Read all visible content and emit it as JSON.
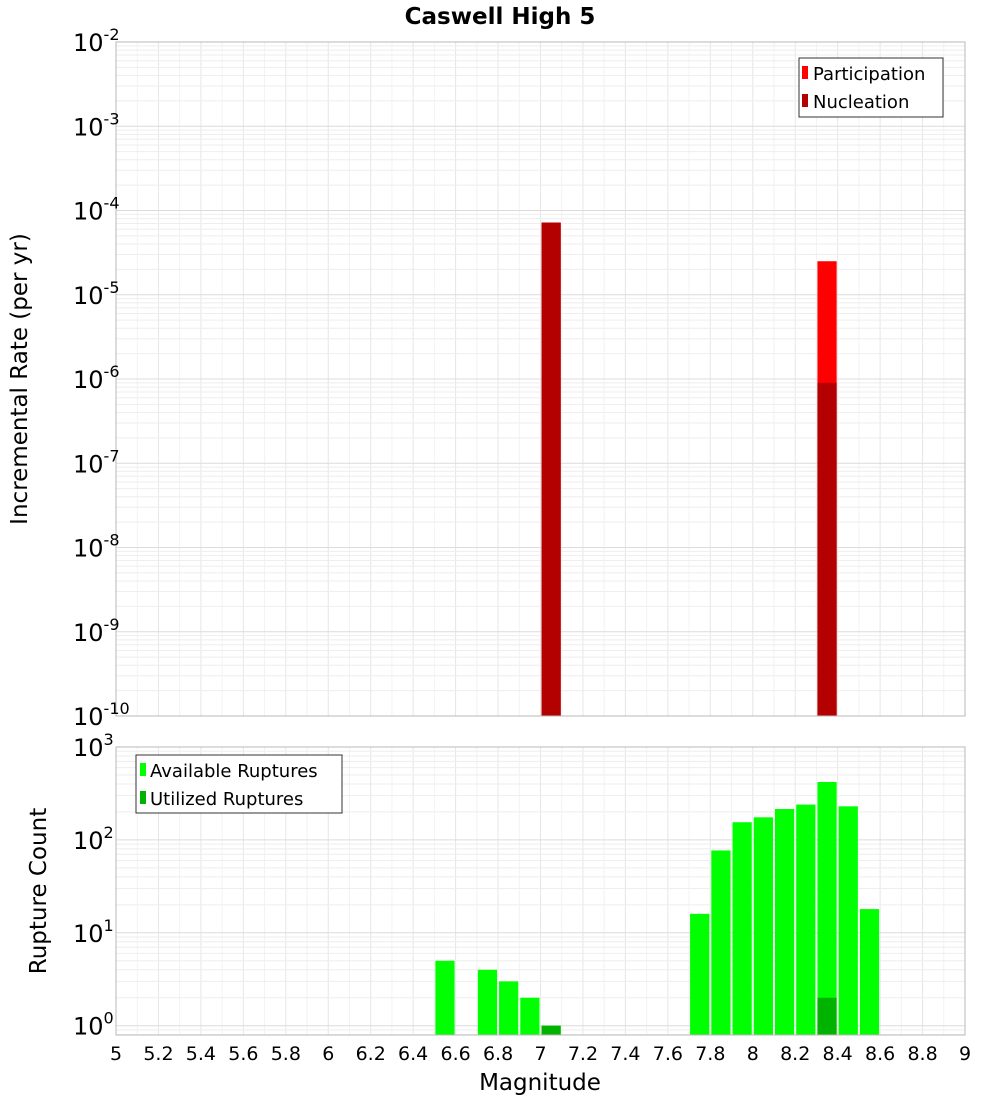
{
  "chart_data": [
    {
      "type": "bar",
      "title": "Caswell High 5",
      "ylabel": "Incremental Rate (per yr)",
      "xlabel": "",
      "yscale": "log",
      "ylim_exp": [
        -10,
        -2
      ],
      "xlim": [
        5,
        9
      ],
      "bin_width": 0.1,
      "legend_position": "top-right",
      "series": [
        {
          "name": "Participation",
          "color": "#ff0000",
          "points": [
            {
              "x": 7.05,
              "y": 7.2e-05
            },
            {
              "x": 8.35,
              "y": 2.5e-05
            }
          ]
        },
        {
          "name": "Nucleation",
          "color": "#b30000",
          "points": [
            {
              "x": 7.05,
              "y": 7.2e-05
            },
            {
              "x": 8.35,
              "y": 9e-07
            }
          ]
        }
      ]
    },
    {
      "type": "bar",
      "title": "",
      "ylabel": "Rupture Count",
      "xlabel": "Magnitude",
      "yscale": "log",
      "ylim_exp": [
        -0.1,
        3
      ],
      "xlim": [
        5,
        9
      ],
      "bin_width": 0.1,
      "legend_position": "top-left",
      "series": [
        {
          "name": "Available Ruptures",
          "color": "#00ff00",
          "points": [
            {
              "x": 6.55,
              "y": 5
            },
            {
              "x": 6.75,
              "y": 4
            },
            {
              "x": 6.85,
              "y": 3
            },
            {
              "x": 6.95,
              "y": 2
            },
            {
              "x": 7.05,
              "y": 1
            },
            {
              "x": 7.75,
              "y": 16
            },
            {
              "x": 7.85,
              "y": 77
            },
            {
              "x": 7.95,
              "y": 155
            },
            {
              "x": 8.05,
              "y": 175
            },
            {
              "x": 8.15,
              "y": 215
            },
            {
              "x": 8.25,
              "y": 240
            },
            {
              "x": 8.35,
              "y": 420
            },
            {
              "x": 8.45,
              "y": 230
            },
            {
              "x": 8.55,
              "y": 18
            }
          ]
        },
        {
          "name": "Utilized Ruptures",
          "color": "#00b300",
          "points": [
            {
              "x": 7.05,
              "y": 1
            },
            {
              "x": 8.35,
              "y": 2
            }
          ]
        }
      ]
    }
  ],
  "x_ticks": [
    "5",
    "5.2",
    "5.4",
    "5.6",
    "5.8",
    "6",
    "6.2",
    "6.4",
    "6.6",
    "6.8",
    "7",
    "7.2",
    "7.4",
    "7.6",
    "7.8",
    "8",
    "8.2",
    "8.4",
    "8.6",
    "8.8",
    "9"
  ],
  "top_y_ticks": [
    {
      "base": "10",
      "exp": "-2"
    },
    {
      "base": "10",
      "exp": "-3"
    },
    {
      "base": "10",
      "exp": "-4"
    },
    {
      "base": "10",
      "exp": "-5"
    },
    {
      "base": "10",
      "exp": "-6"
    },
    {
      "base": "10",
      "exp": "-7"
    },
    {
      "base": "10",
      "exp": "-8"
    },
    {
      "base": "10",
      "exp": "-9"
    },
    {
      "base": "10",
      "exp": "-10"
    }
  ],
  "bottom_y_ticks": [
    {
      "base": "10",
      "exp": "3"
    },
    {
      "base": "10",
      "exp": "2"
    },
    {
      "base": "10",
      "exp": "1"
    },
    {
      "base": "10",
      "exp": "0"
    }
  ]
}
